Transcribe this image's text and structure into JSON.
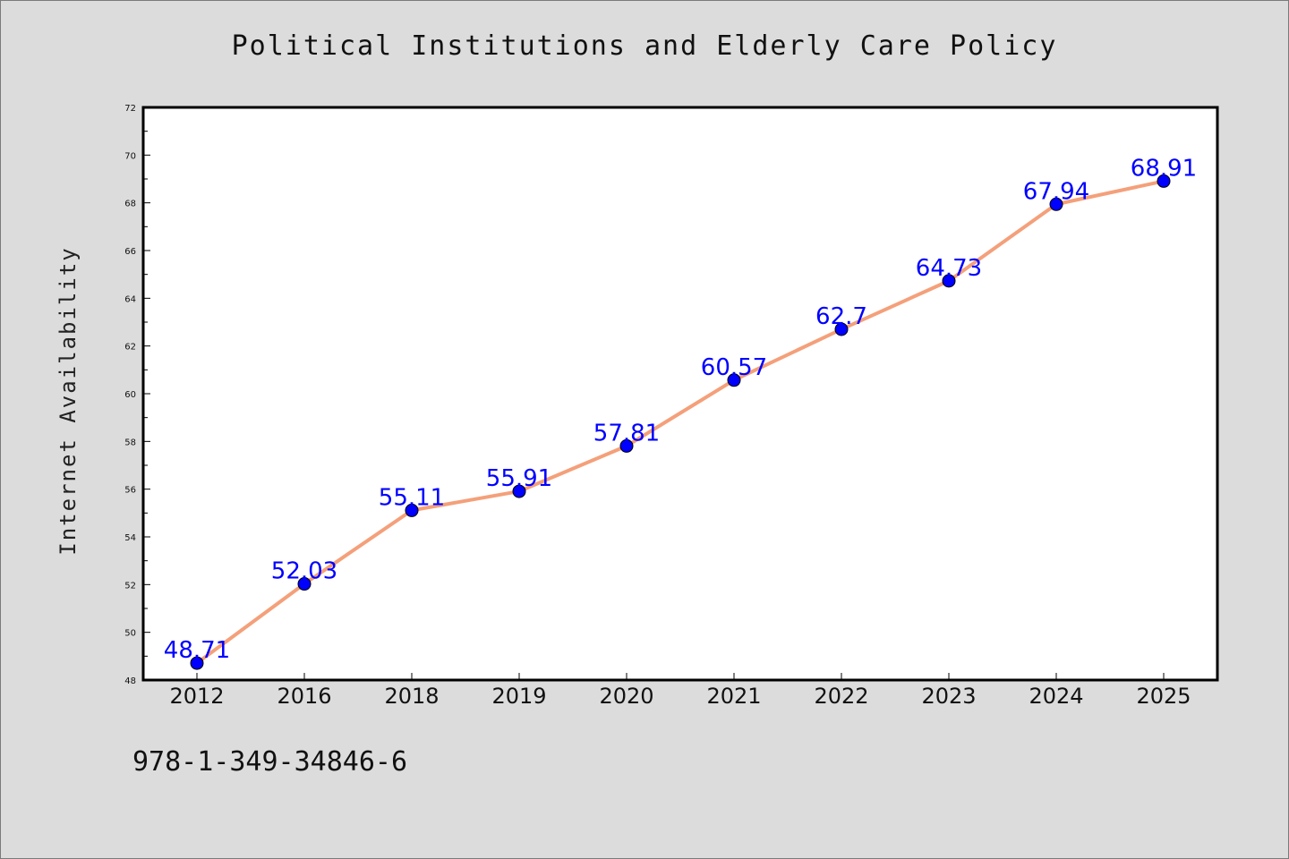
{
  "chart_data": {
    "type": "line",
    "title": "Political Institutions and Elderly Care Policy",
    "xlabel": "",
    "ylabel": "Internet Availability",
    "categories": [
      "2012",
      "2016",
      "2018",
      "2019",
      "2020",
      "2021",
      "2022",
      "2023",
      "2024",
      "2025"
    ],
    "series": [
      {
        "values": [
          48.71,
          52.03,
          55.11,
          55.91,
          57.81,
          60.57,
          62.7,
          64.73,
          67.94,
          68.91
        ],
        "labels": [
          "48.71",
          "52.03",
          "55.11",
          "55.91",
          "57.81",
          "60.57",
          "62.7",
          "64.73",
          "67.94",
          "68.91"
        ],
        "line_color": "#f4a07a",
        "marker_color": "#0000ff",
        "label_color": "#0000ff"
      }
    ],
    "ylim": [
      48,
      72
    ],
    "yticks": [
      "48",
      "50",
      "52",
      "54",
      "56",
      "58",
      "60",
      "62",
      "64",
      "66",
      "68",
      "70",
      "72"
    ],
    "grid": false,
    "legend": "none"
  },
  "footer": {
    "isbn": "978-1-349-34846-6"
  },
  "colors": {
    "background": "#dcdcdc",
    "plot_background": "#ffffff",
    "axes": "#000000"
  }
}
